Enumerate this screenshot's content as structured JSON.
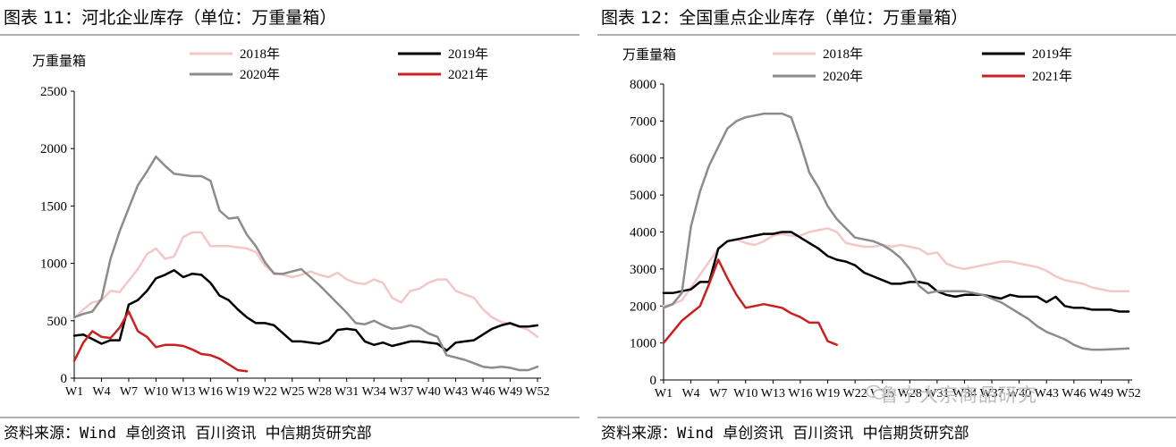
{
  "figures": [
    {
      "title": "图表 11：河北企业库存（单位：万重量箱）",
      "source": "资料来源：Wind 卓创资讯 百川资讯 中信期货研究部",
      "chart_data": {
        "type": "line",
        "title": "河北企业库存（单位：万重量箱）",
        "ylabel": "万重量箱",
        "xlabel": "",
        "ylim": [
          0,
          2500
        ],
        "yticks": [
          0,
          500,
          1000,
          1500,
          2000,
          2500
        ],
        "x_count": 52,
        "xtick_labels": [
          "W1",
          "W4",
          "W7",
          "W10",
          "W13",
          "W16",
          "W19",
          "W22",
          "W25",
          "W28",
          "W31",
          "W34",
          "W37",
          "W40",
          "W43",
          "W46",
          "W49",
          "W52"
        ],
        "grid": false,
        "legend_position": "top",
        "series": [
          {
            "name": "2018年",
            "color": "#f4c7c7",
            "width": 2.5,
            "values": [
              520,
              600,
              660,
              680,
              760,
              750,
              850,
              950,
              1080,
              1130,
              1040,
              1060,
              1230,
              1270,
              1270,
              1150,
              1150,
              1150,
              1140,
              1130,
              1100,
              980,
              920,
              900,
              880,
              900,
              930,
              900,
              880,
              920,
              860,
              830,
              820,
              860,
              830,
              700,
              660,
              760,
              780,
              830,
              860,
              860,
              760,
              730,
              700,
              600,
              530,
              490,
              470,
              450,
              420,
              360
            ]
          },
          {
            "name": "2019年",
            "color": "#000000",
            "width": 2.5,
            "values": [
              370,
              380,
              340,
              300,
              330,
              330,
              640,
              680,
              760,
              870,
              900,
              940,
              880,
              910,
              900,
              830,
              720,
              680,
              600,
              530,
              480,
              480,
              460,
              390,
              320,
              320,
              310,
              300,
              330,
              420,
              430,
              420,
              320,
              290,
              310,
              280,
              300,
              320,
              320,
              310,
              300,
              240,
              310,
              320,
              330,
              380,
              430,
              460,
              480,
              450,
              450,
              460
            ]
          },
          {
            "name": "2020年",
            "color": "#8c8c8c",
            "width": 2.5,
            "values": [
              530,
              560,
              580,
              690,
              1040,
              1280,
              1480,
              1680,
              1800,
              1930,
              1850,
              1780,
              1770,
              1760,
              1760,
              1720,
              1460,
              1390,
              1400,
              1250,
              1150,
              1010,
              910,
              910,
              930,
              950,
              880,
              810,
              730,
              650,
              570,
              480,
              470,
              500,
              460,
              430,
              440,
              460,
              440,
              390,
              360,
              200,
              180,
              160,
              130,
              100,
              90,
              100,
              90,
              70,
              70,
              100
            ]
          },
          {
            "name": "2021年",
            "color": "#cc1f1f",
            "width": 2.5,
            "values": [
              150,
              310,
              410,
              360,
              350,
              440,
              580,
              410,
              360,
              270,
              290,
              290,
              280,
              250,
              210,
              200,
              170,
              120,
              70,
              60
            ]
          }
        ]
      }
    },
    {
      "title": "图表 12：全国重点企业库存（单位：万重量箱）",
      "source": "资料来源：Wind 卓创资讯 百川资讯 中信期货研究部",
      "watermark": "鲁宁大宗商品研究",
      "chart_data": {
        "type": "line",
        "title": "全国重点企业库存（单位：万重量箱）",
        "ylabel": "万重量箱",
        "xlabel": "",
        "ylim": [
          0,
          8000
        ],
        "yticks": [
          0,
          1000,
          2000,
          3000,
          4000,
          5000,
          6000,
          7000,
          8000
        ],
        "x_count": 52,
        "xtick_labels": [
          "W1",
          "W4",
          "W7",
          "W10",
          "W13",
          "W16",
          "W19",
          "W22",
          "W25",
          "W28",
          "W31",
          "W34",
          "W37",
          "W40",
          "W43",
          "W46",
          "W49",
          "W52"
        ],
        "grid": false,
        "legend_position": "top",
        "series": [
          {
            "name": "2018年",
            "color": "#f4c7c7",
            "width": 2.5,
            "values": [
              2000,
              2050,
              2150,
              2500,
              2850,
              3200,
              3550,
              3750,
              3800,
              3700,
              3650,
              3750,
              3900,
              3950,
              3900,
              3900,
              4000,
              4050,
              4100,
              4000,
              3700,
              3650,
              3600,
              3600,
              3650,
              3600,
              3650,
              3600,
              3550,
              3400,
              3450,
              3150,
              3050,
              3000,
              3050,
              3100,
              3150,
              3200,
              3200,
              3150,
              3100,
              3050,
              2950,
              2800,
              2700,
              2650,
              2600,
              2500,
              2450,
              2400,
              2400,
              2400
            ]
          },
          {
            "name": "2019年",
            "color": "#000000",
            "width": 2.5,
            "values": [
              2350,
              2350,
              2400,
              2450,
              2650,
              2650,
              3550,
              3750,
              3800,
              3850,
              3900,
              3950,
              3950,
              4000,
              4000,
              3850,
              3700,
              3550,
              3350,
              3250,
              3200,
              3100,
              2900,
              2800,
              2700,
              2600,
              2600,
              2650,
              2650,
              2600,
              2400,
              2300,
              2250,
              2300,
              2300,
              2300,
              2250,
              2200,
              2300,
              2250,
              2250,
              2250,
              2100,
              2250,
              2000,
              1950,
              1950,
              1900,
              1900,
              1900,
              1850,
              1850
            ]
          },
          {
            "name": "2020年",
            "color": "#8c8c8c",
            "width": 2.5,
            "values": [
              1950,
              2050,
              2350,
              4150,
              5100,
              5800,
              6300,
              6800,
              7000,
              7100,
              7150,
              7200,
              7200,
              7200,
              7100,
              6400,
              5600,
              5200,
              4700,
              4350,
              4100,
              3850,
              3800,
              3750,
              3650,
              3500,
              3300,
              3000,
              2550,
              2350,
              2400,
              2400,
              2400,
              2400,
              2350,
              2300,
              2200,
              2100,
              1950,
              1800,
              1650,
              1450,
              1300,
              1200,
              1100,
              950,
              850,
              820,
              820,
              830,
              840,
              850
            ]
          },
          {
            "name": "2021年",
            "color": "#cc1f1f",
            "width": 2.5,
            "values": [
              1000,
              1300,
              1600,
              1800,
              2000,
              2600,
              3250,
              2750,
              2300,
              1950,
              2000,
              2050,
              2000,
              1950,
              1800,
              1700,
              1550,
              1550,
              1050,
              950
            ]
          }
        ]
      }
    }
  ]
}
